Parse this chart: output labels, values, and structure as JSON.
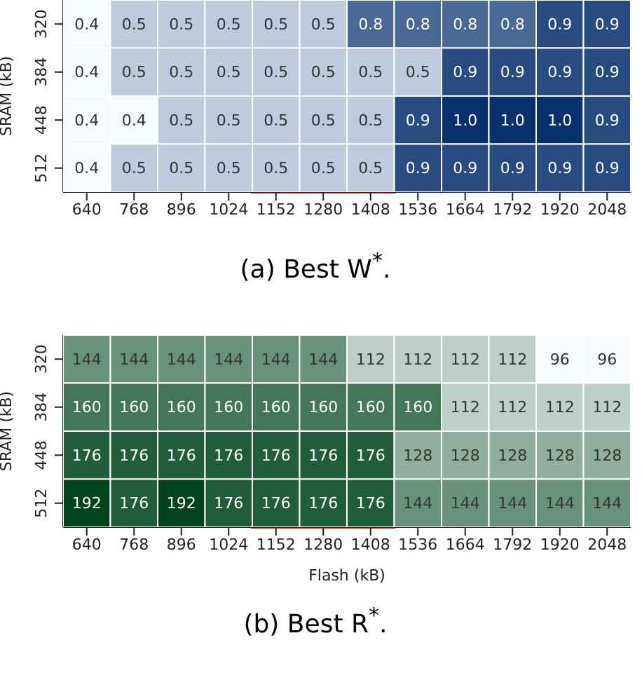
{
  "chart_data": [
    {
      "type": "heatmap",
      "title": "(a) Best W$^{*}$.",
      "ylabel": "SRAM (kB)",
      "color": "#08306b",
      "categories": [
        "640",
        "768",
        "896",
        "1024",
        "1152",
        "1280",
        "1408",
        "1536",
        "1664",
        "1792",
        "1920",
        "2048"
      ],
      "y_categories": [
        "320",
        "384",
        "448",
        "512"
      ],
      "cells": [
        [
          0.4,
          0.5,
          0.5,
          0.5,
          0.5,
          0.5,
          0.8,
          0.8,
          0.8,
          0.8,
          0.9,
          0.9
        ],
        [
          0.4,
          0.5,
          0.5,
          0.5,
          0.5,
          0.5,
          0.5,
          0.5,
          0.9,
          0.9,
          0.9,
          0.9
        ],
        [
          0.4,
          0.4,
          0.5,
          0.5,
          0.5,
          0.5,
          0.5,
          0.9,
          1.0,
          1.0,
          1.0,
          0.9
        ],
        [
          0.4,
          0.5,
          0.5,
          0.5,
          0.5,
          0.5,
          0.5,
          0.9,
          0.9,
          0.9,
          0.9,
          0.9
        ]
      ],
      "cell_labels": [
        [
          "0.4",
          "0.5",
          "0.5",
          "0.5",
          "0.5",
          "0.5",
          "0.8",
          "0.8",
          "0.8",
          "0.8",
          "0.9",
          "0.9"
        ],
        [
          "0.4",
          "0.5",
          "0.5",
          "0.5",
          "0.5",
          "0.5",
          "0.5",
          "0.5",
          "0.9",
          "0.9",
          "0.9",
          "0.9"
        ],
        [
          "0.4",
          "0.4",
          "0.5",
          "0.5",
          "0.5",
          "0.5",
          "0.5",
          "0.9",
          "1.0",
          "1.0",
          "1.0",
          "0.9"
        ],
        [
          "0.4",
          "0.5",
          "0.5",
          "0.5",
          "0.5",
          "0.5",
          "0.5",
          "0.9",
          "0.9",
          "0.9",
          "0.9",
          "0.9"
        ]
      ]
    },
    {
      "type": "heatmap",
      "title": "(b) Best R$^{*}$.",
      "xlabel": "Flash (kB)",
      "ylabel": "SRAM (kB)",
      "color": "#00441b",
      "categories": [
        "640",
        "768",
        "896",
        "1024",
        "1152",
        "1280",
        "1408",
        "1536",
        "1664",
        "1792",
        "1920",
        "2048"
      ],
      "y_categories": [
        "320",
        "384",
        "448",
        "512"
      ],
      "cells": [
        [
          144,
          144,
          144,
          144,
          144,
          144,
          112,
          112,
          112,
          112,
          96,
          96
        ],
        [
          160,
          160,
          160,
          160,
          160,
          160,
          160,
          160,
          112,
          112,
          112,
          112
        ],
        [
          176,
          176,
          176,
          176,
          176,
          176,
          176,
          128,
          128,
          128,
          128,
          128
        ],
        [
          192,
          176,
          192,
          176,
          176,
          176,
          176,
          144,
          144,
          144,
          144,
          144
        ]
      ],
      "data_labels": true
    }
  ]
}
